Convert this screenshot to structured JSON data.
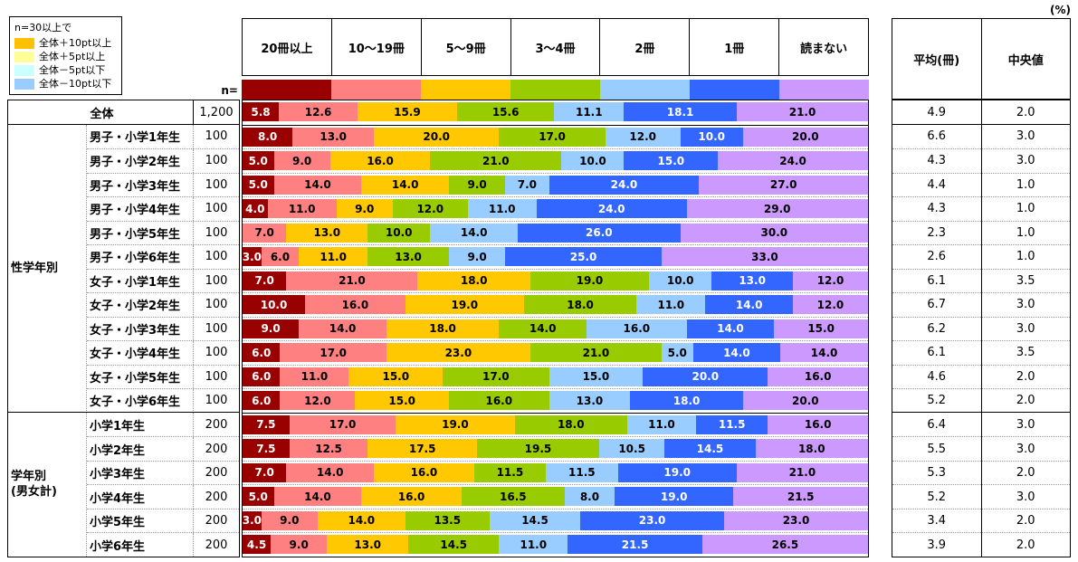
{
  "labels": {
    "n_equals": "n=",
    "percent": "(%)"
  },
  "legend": {
    "title": "n=30以上で",
    "items": [
      {
        "label": "全体＋10pt以上",
        "color": "#FFC000"
      },
      {
        "label": "全体＋5pt以上",
        "color": "#FFFF99"
      },
      {
        "label": "全体－5pt以下",
        "color": "#CCFFFF"
      },
      {
        "label": "全体－10pt以下",
        "color": "#99CCFF"
      }
    ]
  },
  "right_columns": {
    "mean_header": "平均(冊)",
    "median_header": "中央値"
  },
  "palette": {
    "segment_colors": [
      "#990000",
      "#FF8080",
      "#FFC800",
      "#99CC00",
      "#99CCFF",
      "#3366FF",
      "#CC99FF"
    ],
    "segment_label_colors": [
      "#FFFFFF",
      "#000000",
      "#000000",
      "#000000",
      "#000000",
      "#FFFFFF",
      "#000000"
    ]
  },
  "chart_data": {
    "type": "bar",
    "stacked": true,
    "orientation": "horizontal",
    "unit": "%",
    "xlim": [
      0,
      100
    ],
    "categories": [
      "20冊以上",
      "10〜19冊",
      "5〜9冊",
      "3〜4冊",
      "2冊",
      "1冊",
      "読まない"
    ],
    "sections": [
      {
        "group_label": "",
        "rows": [
          {
            "label": "全体",
            "n": "1,200",
            "values": [
              5.8,
              12.6,
              15.9,
              15.6,
              11.1,
              18.1,
              21.0
            ],
            "mean": 4.9,
            "median": 2.0
          }
        ]
      },
      {
        "group_label": "性学年別",
        "rows": [
          {
            "label": "男子・小学1年生",
            "n": "100",
            "values": [
              8.0,
              13.0,
              20.0,
              17.0,
              12.0,
              10.0,
              20.0
            ],
            "mean": 6.6,
            "median": 3.0
          },
          {
            "label": "男子・小学2年生",
            "n": "100",
            "values": [
              5.0,
              9.0,
              16.0,
              21.0,
              10.0,
              15.0,
              24.0
            ],
            "mean": 4.3,
            "median": 3.0
          },
          {
            "label": "男子・小学3年生",
            "n": "100",
            "values": [
              5.0,
              14.0,
              14.0,
              9.0,
              7.0,
              24.0,
              27.0
            ],
            "mean": 4.4,
            "median": 1.0
          },
          {
            "label": "男子・小学4年生",
            "n": "100",
            "values": [
              4.0,
              11.0,
              9.0,
              12.0,
              11.0,
              24.0,
              29.0
            ],
            "mean": 4.3,
            "median": 1.0
          },
          {
            "label": "男子・小学5年生",
            "n": "100",
            "values": [
              0,
              7.0,
              13.0,
              10.0,
              14.0,
              26.0,
              30.0
            ],
            "mean": 2.3,
            "median": 1.0
          },
          {
            "label": "男子・小学6年生",
            "n": "100",
            "values": [
              3.0,
              6.0,
              11.0,
              13.0,
              9.0,
              25.0,
              33.0
            ],
            "mean": 2.6,
            "median": 1.0
          },
          {
            "label": "女子・小学1年生",
            "n": "100",
            "values": [
              7.0,
              21.0,
              18.0,
              19.0,
              10.0,
              13.0,
              12.0
            ],
            "mean": 6.1,
            "median": 3.5
          },
          {
            "label": "女子・小学2年生",
            "n": "100",
            "values": [
              10.0,
              16.0,
              19.0,
              18.0,
              11.0,
              14.0,
              12.0
            ],
            "mean": 6.7,
            "median": 3.0
          },
          {
            "label": "女子・小学3年生",
            "n": "100",
            "values": [
              9.0,
              14.0,
              18.0,
              14.0,
              16.0,
              14.0,
              15.0
            ],
            "mean": 6.2,
            "median": 3.0
          },
          {
            "label": "女子・小学4年生",
            "n": "100",
            "values": [
              6.0,
              17.0,
              23.0,
              21.0,
              5.0,
              14.0,
              14.0
            ],
            "mean": 6.1,
            "median": 3.5
          },
          {
            "label": "女子・小学5年生",
            "n": "100",
            "values": [
              6.0,
              11.0,
              15.0,
              17.0,
              15.0,
              20.0,
              16.0
            ],
            "mean": 4.6,
            "median": 2.0
          },
          {
            "label": "女子・小学6年生",
            "n": "100",
            "values": [
              6.0,
              12.0,
              15.0,
              16.0,
              13.0,
              18.0,
              20.0
            ],
            "mean": 5.2,
            "median": 2.0
          }
        ]
      },
      {
        "group_label": "学年別\n(男女計)",
        "rows": [
          {
            "label": "小学1年生",
            "n": "200",
            "values": [
              7.5,
              17.0,
              19.0,
              18.0,
              11.0,
              11.5,
              16.0
            ],
            "mean": 6.4,
            "median": 3.0
          },
          {
            "label": "小学2年生",
            "n": "200",
            "values": [
              7.5,
              12.5,
              17.5,
              19.5,
              10.5,
              14.5,
              18.0
            ],
            "mean": 5.5,
            "median": 3.0
          },
          {
            "label": "小学3年生",
            "n": "200",
            "values": [
              7.0,
              14.0,
              16.0,
              11.5,
              11.5,
              19.0,
              21.0
            ],
            "mean": 5.3,
            "median": 2.0
          },
          {
            "label": "小学4年生",
            "n": "200",
            "values": [
              5.0,
              14.0,
              16.0,
              16.5,
              8.0,
              19.0,
              21.5
            ],
            "mean": 5.2,
            "median": 3.0
          },
          {
            "label": "小学5年生",
            "n": "200",
            "values": [
              3.0,
              9.0,
              14.0,
              13.5,
              14.5,
              23.0,
              23.0
            ],
            "mean": 3.4,
            "median": 2.0
          },
          {
            "label": "小学6年生",
            "n": "200",
            "values": [
              4.5,
              9.0,
              13.0,
              14.5,
              11.0,
              21.5,
              26.5
            ],
            "mean": 3.9,
            "median": 2.0
          }
        ]
      }
    ]
  }
}
